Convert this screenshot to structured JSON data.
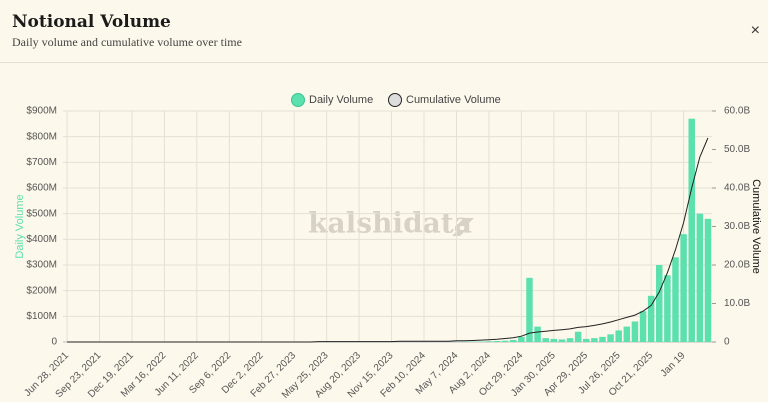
{
  "header": {
    "title": "Notional Volume",
    "subtitle": "Daily volume and cumulative volume over time",
    "close": "×"
  },
  "watermark": "kalshidata",
  "chart_data": {
    "type": "bar_line",
    "y_label": "Daily Volume",
    "y2_label": "Cumulative Volume",
    "categories": [
      "Jun 28, 2021",
      null,
      null,
      null,
      "Sep 23, 2021",
      null,
      null,
      null,
      "Dec 19, 2021",
      null,
      null,
      null,
      "Mar 16, 2022",
      null,
      null,
      null,
      "Jun 11, 2022",
      null,
      null,
      null,
      "Sep 6, 2022",
      null,
      null,
      null,
      "Dec 2, 2022",
      null,
      null,
      null,
      "Feb 27, 2023",
      null,
      null,
      null,
      "May 25, 2023",
      null,
      null,
      null,
      "Aug 20, 2023",
      null,
      null,
      null,
      "Nov 15, 2023",
      null,
      null,
      null,
      "Feb 10, 2024",
      null,
      null,
      null,
      "May 7, 2024",
      null,
      null,
      null,
      "Aug 2, 2024",
      null,
      null,
      null,
      "Oct 29, 2024",
      null,
      null,
      null,
      "Jan 30, 2025",
      null,
      null,
      null,
      "Apr 29, 2025",
      null,
      null,
      null,
      "Jul 26, 2025",
      null,
      null,
      null,
      "Oct 21, 2025",
      null,
      null,
      null,
      "Jan 19",
      null,
      null,
      null
    ],
    "series": [
      {
        "name": "Daily Volume",
        "color": "#5ce0ae",
        "kind": "bar",
        "values": [
          0,
          0,
          0,
          0,
          0,
          0,
          0,
          0,
          0,
          0,
          0,
          0,
          0,
          0,
          0,
          0,
          0,
          0,
          0,
          0,
          0,
          0,
          0,
          0,
          0,
          0,
          0,
          0,
          0,
          0,
          0,
          0,
          0,
          0,
          0,
          0,
          0,
          0,
          0,
          0,
          0,
          0,
          0,
          0,
          0,
          0,
          0,
          0,
          1,
          1,
          2,
          2,
          3,
          4,
          5,
          8,
          20,
          250,
          60,
          15,
          12,
          10,
          15,
          40,
          12,
          15,
          20,
          30,
          45,
          60,
          80,
          120,
          180,
          300,
          260,
          330,
          420,
          870,
          500,
          480
        ]
      },
      {
        "name": "Cumulative Volume",
        "color": "#222222",
        "kind": "line",
        "axis": "y2",
        "values": [
          0,
          0,
          0,
          0,
          0,
          0,
          0,
          0,
          0,
          0,
          0,
          0,
          0,
          0,
          0,
          0,
          0,
          0,
          0,
          0,
          0,
          0,
          0,
          0,
          0,
          0,
          0,
          0,
          0,
          0,
          0,
          0.1,
          0.1,
          0.1,
          0.1,
          0.1,
          0.1,
          0.1,
          0.1,
          0.1,
          0.1,
          0.2,
          0.2,
          0.2,
          0.2,
          0.2,
          0.2,
          0.2,
          0.3,
          0.3,
          0.4,
          0.5,
          0.6,
          0.7,
          0.9,
          1.1,
          1.5,
          2.3,
          2.6,
          2.8,
          3.0,
          3.2,
          3.4,
          3.8,
          4.0,
          4.3,
          4.7,
          5.2,
          5.8,
          6.4,
          7.0,
          8.0,
          9.5,
          13,
          18,
          24,
          31,
          40,
          48,
          53
        ]
      }
    ],
    "ylim": [
      0,
      900
    ],
    "yticks": [
      0,
      {
        "value": 100,
        "label": "$100M"
      },
      {
        "value": 200,
        "label": "$200M"
      },
      {
        "value": 300,
        "label": "$300M"
      },
      {
        "value": 400,
        "label": "$400M"
      },
      {
        "value": 500,
        "label": "$500M"
      },
      {
        "value": 600,
        "label": "$600M"
      },
      {
        "value": 700,
        "label": "$700M"
      },
      {
        "value": 800,
        "label": "$800M"
      },
      {
        "value": 900,
        "label": "$900M"
      }
    ],
    "y2lim": [
      0,
      60
    ],
    "y2ticks": [
      0,
      {
        "value": 10,
        "label": "10.0B"
      },
      {
        "value": 20,
        "label": "20.0B"
      },
      {
        "value": 30,
        "label": "30.0B"
      },
      {
        "value": 40,
        "label": "40.0B"
      },
      {
        "value": 50,
        "label": "50.0B"
      },
      {
        "value": 60,
        "label": "60.0B"
      }
    ],
    "grid": true,
    "legend": "top"
  }
}
